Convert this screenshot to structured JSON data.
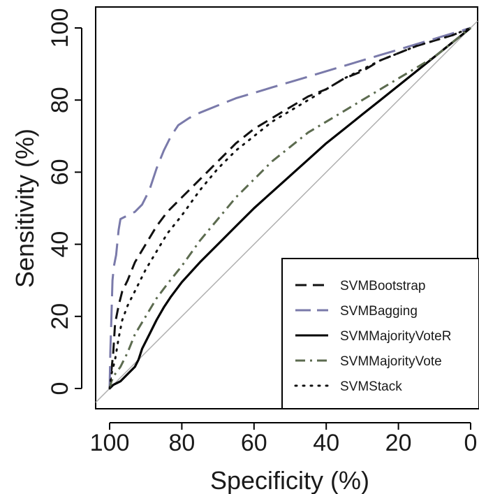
{
  "chart_data": {
    "type": "line",
    "title": "",
    "xlabel": "Specificity (%)",
    "ylabel": "Sensitivity (%)",
    "xlim": [
      100,
      0
    ],
    "ylim": [
      0,
      100
    ],
    "x_reversed": true,
    "x_ticks": [
      100,
      80,
      60,
      40,
      20,
      0
    ],
    "y_ticks": [
      0,
      20,
      40,
      60,
      80,
      100
    ],
    "grid": false,
    "legend_position": "bottom-right",
    "reference_line": {
      "from": [
        100,
        0
      ],
      "to": [
        0,
        100
      ],
      "color": "#b0b0b0"
    },
    "series": [
      {
        "name": "SVMBootstrap",
        "color": "#111111",
        "dash": "dashed",
        "points": [
          [
            100,
            0
          ],
          [
            99.5,
            5
          ],
          [
            99,
            10
          ],
          [
            98.5,
            18
          ],
          [
            97.5,
            23
          ],
          [
            96.5,
            27
          ],
          [
            95,
            30
          ],
          [
            93,
            35
          ],
          [
            90,
            40
          ],
          [
            87,
            45
          ],
          [
            84,
            49
          ],
          [
            80,
            53
          ],
          [
            75,
            58
          ],
          [
            70,
            63
          ],
          [
            65,
            68
          ],
          [
            60,
            72
          ],
          [
            55,
            75
          ],
          [
            50,
            78
          ],
          [
            45,
            81
          ],
          [
            40,
            83
          ],
          [
            35,
            86
          ],
          [
            30,
            88
          ],
          [
            25,
            91
          ],
          [
            20,
            93
          ],
          [
            15,
            95
          ],
          [
            10,
            96.5
          ],
          [
            5,
            98
          ],
          [
            0,
            100
          ]
        ]
      },
      {
        "name": "SVMBagging",
        "color": "#7a7aaa",
        "dash": "longdash",
        "points": [
          [
            100,
            0
          ],
          [
            99.8,
            10
          ],
          [
            99.5,
            20
          ],
          [
            99.2,
            30
          ],
          [
            98.8,
            34
          ],
          [
            98.2,
            37
          ],
          [
            97.5,
            44
          ],
          [
            97,
            47
          ],
          [
            95,
            48
          ],
          [
            93,
            49
          ],
          [
            91,
            51
          ],
          [
            89,
            55
          ],
          [
            87,
            61
          ],
          [
            85,
            66
          ],
          [
            83,
            70
          ],
          [
            81,
            73
          ],
          [
            78,
            75
          ],
          [
            75,
            76.5
          ],
          [
            70,
            78.5
          ],
          [
            65,
            80.5
          ],
          [
            60,
            82
          ],
          [
            55,
            83.5
          ],
          [
            50,
            85
          ],
          [
            45,
            86.5
          ],
          [
            40,
            88
          ],
          [
            35,
            89.5
          ],
          [
            30,
            91
          ],
          [
            25,
            92.5
          ],
          [
            20,
            94
          ],
          [
            15,
            95.5
          ],
          [
            10,
            97
          ],
          [
            5,
            98.5
          ],
          [
            0,
            100
          ]
        ]
      },
      {
        "name": "SVMMajorityVoteR",
        "color": "#000000",
        "dash": "solid",
        "points": [
          [
            100,
            0
          ],
          [
            99,
            1
          ],
          [
            98,
            1.5
          ],
          [
            97,
            2
          ],
          [
            96,
            3
          ],
          [
            95,
            4
          ],
          [
            93,
            6
          ],
          [
            92,
            8
          ],
          [
            91,
            11
          ],
          [
            89,
            15
          ],
          [
            87,
            19
          ],
          [
            85,
            22.5
          ],
          [
            83,
            25.5
          ],
          [
            80,
            29.5
          ],
          [
            75,
            35
          ],
          [
            70,
            40
          ],
          [
            65,
            45
          ],
          [
            60,
            50
          ],
          [
            55,
            54.5
          ],
          [
            50,
            59
          ],
          [
            45,
            63.5
          ],
          [
            40,
            68
          ],
          [
            35,
            72
          ],
          [
            30,
            76
          ],
          [
            25,
            80
          ],
          [
            20,
            84
          ],
          [
            15,
            88
          ],
          [
            10,
            92
          ],
          [
            5,
            96
          ],
          [
            0,
            100
          ]
        ]
      },
      {
        "name": "SVMMajorityVote",
        "color": "#5c6b4f",
        "dash": "dashdot",
        "points": [
          [
            100,
            0
          ],
          [
            99.5,
            2
          ],
          [
            98.5,
            4
          ],
          [
            97,
            6
          ],
          [
            95,
            10
          ],
          [
            93,
            15
          ],
          [
            90,
            20
          ],
          [
            87,
            25
          ],
          [
            84,
            29
          ],
          [
            80,
            34
          ],
          [
            75,
            41
          ],
          [
            70,
            47
          ],
          [
            65,
            53
          ],
          [
            60,
            58
          ],
          [
            55,
            63
          ],
          [
            50,
            67
          ],
          [
            45,
            71
          ],
          [
            40,
            74
          ],
          [
            35,
            77
          ],
          [
            30,
            80
          ],
          [
            25,
            83
          ],
          [
            20,
            86
          ],
          [
            15,
            89
          ],
          [
            10,
            92
          ],
          [
            5,
            96
          ],
          [
            0,
            100
          ]
        ]
      },
      {
        "name": "SVMStack",
        "color": "#111111",
        "dash": "dotted",
        "points": [
          [
            100,
            0
          ],
          [
            99.5,
            4
          ],
          [
            98.5,
            8
          ],
          [
            97.5,
            14
          ],
          [
            96.5,
            19
          ],
          [
            95,
            23
          ],
          [
            93,
            27
          ],
          [
            90,
            33
          ],
          [
            87,
            38
          ],
          [
            84,
            43
          ],
          [
            80,
            48
          ],
          [
            75,
            55
          ],
          [
            70,
            61
          ],
          [
            65,
            66
          ],
          [
            60,
            70
          ],
          [
            55,
            74
          ],
          [
            50,
            77
          ],
          [
            45,
            80
          ],
          [
            40,
            83
          ],
          [
            35,
            86
          ],
          [
            30,
            88.5
          ],
          [
            25,
            91
          ],
          [
            20,
            93
          ],
          [
            15,
            95
          ],
          [
            10,
            96.5
          ],
          [
            5,
            98
          ],
          [
            0,
            100
          ]
        ]
      }
    ]
  }
}
